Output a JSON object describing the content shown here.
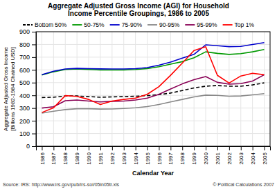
{
  "chart_data": {
    "type": "line",
    "title": "Aggregate Adjusted Gross Income (AGI) for Household\nIncome Percentile Groupings, 1986 to 2005",
    "x_label": "Calendar Year",
    "y_label": "Aggregate Adjusted Gross Income\n[Billions 1982-1984 Chained USD]",
    "x": [
      1986,
      1987,
      1988,
      1989,
      1990,
      1991,
      1992,
      1993,
      1994,
      1995,
      1996,
      1997,
      1998,
      1999,
      2000,
      2001,
      2002,
      2003,
      2004,
      2005
    ],
    "series": [
      {
        "name": "Bottom 50%",
        "color": "#000000",
        "line_style": "dashed",
        "values": [
          383,
          385,
          395,
          395,
          390,
          385,
          388,
          390,
          393,
          398,
          405,
          418,
          438,
          458,
          472,
          477,
          472,
          472,
          482,
          498
        ]
      },
      {
        "name": "50-75%",
        "color": "#009900",
        "line_style": "solid",
        "values": [
          560,
          585,
          603,
          608,
          603,
          600,
          600,
          600,
          603,
          610,
          625,
          645,
          665,
          695,
          742,
          730,
          722,
          728,
          742,
          760
        ]
      },
      {
        "name": "75-90%",
        "color": "#0000cc",
        "line_style": "solid",
        "values": [
          563,
          590,
          607,
          612,
          610,
          608,
          607,
          607,
          610,
          618,
          637,
          662,
          692,
          722,
          797,
          790,
          783,
          785,
          800,
          815
        ]
      },
      {
        "name": "90-95%",
        "color": "#888888",
        "line_style": "solid",
        "values": [
          260,
          275,
          288,
          295,
          295,
          292,
          293,
          297,
          302,
          312,
          328,
          348,
          368,
          388,
          402,
          400,
          393,
          395,
          404,
          413
        ]
      },
      {
        "name": "95-99%",
        "color": "#880055",
        "line_style": "solid",
        "values": [
          300,
          310,
          358,
          363,
          355,
          348,
          353,
          355,
          363,
          378,
          408,
          450,
          490,
          523,
          548,
          502,
          488,
          492,
          512,
          562
        ]
      },
      {
        "name": "Top 1%",
        "color": "#ff0000",
        "line_style": "solid",
        "values": [
          265,
          302,
          398,
          392,
          368,
          328,
          355,
          368,
          378,
          408,
          468,
          558,
          653,
          752,
          782,
          557,
          497,
          552,
          573,
          562
        ]
      }
    ],
    "xlim": [
      1985.5,
      2005.5
    ],
    "xticks": [
      1986,
      1987,
      1988,
      1989,
      1990,
      1991,
      1992,
      1993,
      1994,
      1995,
      1996,
      1997,
      1998,
      1999,
      2000,
      2001,
      2002,
      2003,
      2004,
      2005
    ],
    "ylim": [
      0,
      900
    ],
    "yticks": [
      0,
      100,
      200,
      300,
      400,
      500,
      600,
      700,
      800,
      900
    ],
    "grid": true,
    "legend": "top",
    "annotations": [
      "Source: IRS: http://www.irs.gov/pub/irs-soi/05in05tr.xls",
      "© Political Calculations 2007"
    ]
  }
}
